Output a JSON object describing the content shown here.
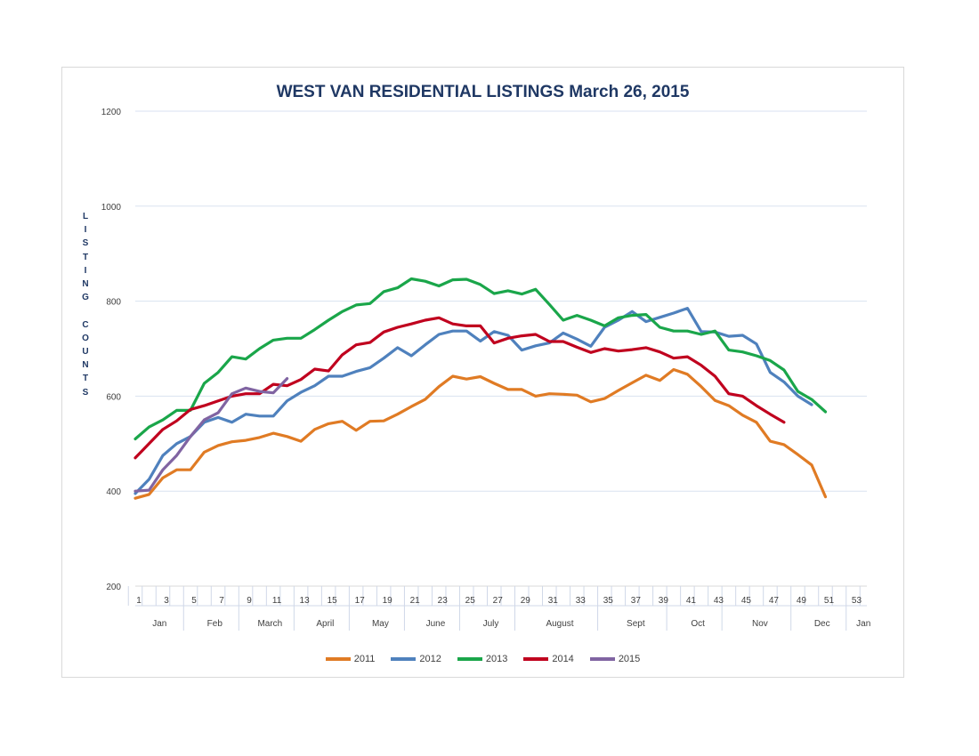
{
  "chart_data": {
    "type": "line",
    "title": "WEST VAN RESIDENTIAL LISTINGS March 26, 2015",
    "ylabel": "LISTING COUNTS",
    "xlabel": "",
    "ylim": [
      200,
      1200
    ],
    "yticks": [
      200,
      400,
      600,
      800,
      1000,
      1200
    ],
    "xlim": [
      1,
      54
    ],
    "xticks": [
      1,
      3,
      5,
      7,
      9,
      11,
      13,
      15,
      17,
      19,
      21,
      23,
      25,
      27,
      29,
      31,
      33,
      35,
      37,
      39,
      41,
      43,
      45,
      47,
      49,
      51,
      53
    ],
    "month_labels": [
      {
        "label": "Jan",
        "x": 2.5
      },
      {
        "label": "Feb",
        "x": 6.5
      },
      {
        "label": "March",
        "x": 10.5
      },
      {
        "label": "April",
        "x": 14.5
      },
      {
        "label": "May",
        "x": 18.5
      },
      {
        "label": "June",
        "x": 22.5
      },
      {
        "label": "July",
        "x": 26.5
      },
      {
        "label": "August",
        "x": 31.5
      },
      {
        "label": "Sept",
        "x": 37
      },
      {
        "label": "Oct",
        "x": 41.5
      },
      {
        "label": "Nov",
        "x": 46
      },
      {
        "label": "Dec",
        "x": 50.5
      },
      {
        "label": "Jan",
        "x": 53.5
      }
    ],
    "month_dividers": [
      4.5,
      8.5,
      12.5,
      16.5,
      20.5,
      24.5,
      28.5,
      34.5,
      39.5,
      43.5,
      48.5,
      52.5
    ],
    "grid": true,
    "legend_position": "bottom",
    "series": [
      {
        "name": "2011",
        "color": "#e07b24",
        "x": [
          1,
          2,
          3,
          4,
          5,
          6,
          7,
          8,
          9,
          10,
          11,
          12,
          13,
          14,
          15,
          16,
          17,
          18,
          19,
          20,
          21,
          22,
          23,
          24,
          25,
          26,
          27,
          28,
          29,
          30,
          31,
          32,
          33,
          34,
          35,
          36,
          37,
          38,
          39,
          40,
          41,
          42,
          43,
          44,
          45,
          46,
          47,
          48,
          49,
          50,
          51
        ],
        "y": [
          385,
          393,
          428,
          445,
          445,
          482,
          496,
          504,
          507,
          513,
          522,
          515,
          505,
          530,
          542,
          547,
          528,
          547,
          548,
          562,
          578,
          593,
          620,
          642,
          636,
          641,
          627,
          614,
          614,
          600,
          605,
          604,
          602,
          588,
          595,
          612,
          628,
          644,
          633,
          656,
          646,
          620,
          591,
          580,
          560,
          545,
          505,
          498,
          477,
          455,
          388
        ]
      },
      {
        "name": "2012",
        "color": "#4f81bd",
        "x": [
          1,
          2,
          3,
          4,
          5,
          6,
          7,
          8,
          9,
          10,
          11,
          12,
          13,
          14,
          15,
          16,
          17,
          18,
          19,
          20,
          21,
          22,
          23,
          24,
          25,
          26,
          27,
          28,
          29,
          30,
          31,
          32,
          33,
          34,
          35,
          36,
          37,
          38,
          39,
          40,
          41,
          42,
          43,
          44,
          45,
          46,
          47,
          48,
          49,
          50
        ],
        "y": [
          395,
          425,
          475,
          500,
          515,
          545,
          555,
          545,
          562,
          558,
          558,
          590,
          608,
          622,
          642,
          642,
          652,
          660,
          680,
          702,
          685,
          708,
          730,
          737,
          737,
          716,
          736,
          728,
          697,
          706,
          712,
          733,
          720,
          705,
          745,
          760,
          778,
          757,
          766,
          775,
          785,
          736,
          735,
          726,
          728,
          710,
          650,
          630,
          600,
          582
        ]
      },
      {
        "name": "2013",
        "color": "#1aa64a",
        "x": [
          1,
          2,
          3,
          4,
          5,
          6,
          7,
          8,
          9,
          10,
          11,
          12,
          13,
          14,
          15,
          16,
          17,
          18,
          19,
          20,
          21,
          22,
          23,
          24,
          25,
          26,
          27,
          28,
          29,
          30,
          31,
          32,
          33,
          34,
          35,
          36,
          37,
          38,
          39,
          40,
          41,
          42,
          43,
          44,
          45,
          46,
          47,
          48,
          49,
          50,
          51
        ],
        "y": [
          510,
          535,
          550,
          570,
          570,
          627,
          650,
          683,
          678,
          700,
          718,
          722,
          722,
          740,
          760,
          778,
          792,
          795,
          820,
          828,
          847,
          842,
          832,
          845,
          846,
          835,
          816,
          822,
          815,
          825,
          793,
          760,
          770,
          760,
          748,
          765,
          770,
          772,
          745,
          737,
          737,
          730,
          737,
          697,
          693,
          685,
          675,
          655,
          610,
          593,
          567
        ]
      },
      {
        "name": "2014",
        "color": "#c0001e",
        "x": [
          1,
          2,
          3,
          4,
          5,
          6,
          7,
          8,
          9,
          10,
          11,
          12,
          13,
          14,
          15,
          16,
          17,
          18,
          19,
          20,
          21,
          22,
          23,
          24,
          25,
          26,
          27,
          28,
          29,
          30,
          31,
          32,
          33,
          34,
          35,
          36,
          37,
          38,
          39,
          40,
          41,
          42,
          43,
          44,
          45,
          46,
          47,
          48
        ],
        "y": [
          470,
          500,
          530,
          548,
          572,
          580,
          590,
          600,
          605,
          605,
          625,
          622,
          635,
          657,
          653,
          687,
          708,
          713,
          735,
          745,
          752,
          760,
          765,
          752,
          748,
          748,
          712,
          722,
          727,
          730,
          715,
          715,
          703,
          692,
          700,
          695,
          698,
          702,
          693,
          680,
          683,
          665,
          642,
          605,
          600,
          580,
          562,
          545
        ]
      },
      {
        "name": "2015",
        "color": "#8064a2",
        "x": [
          1,
          2,
          3,
          4,
          5,
          6,
          7,
          8,
          9,
          10,
          11,
          12
        ],
        "y": [
          400,
          402,
          445,
          475,
          515,
          550,
          565,
          605,
          617,
          610,
          607,
          637
        ]
      }
    ]
  }
}
